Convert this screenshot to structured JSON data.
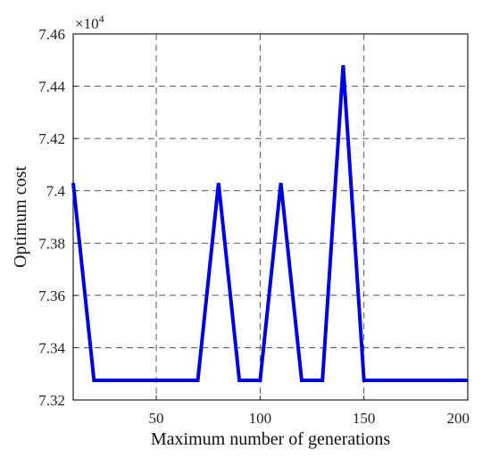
{
  "chart_data": {
    "type": "line",
    "title": "",
    "xlabel": "Maximum number of generations",
    "ylabel": "Optimum cost",
    "y_multiplier": "×10",
    "y_multiplier_exponent": "4",
    "xlim": [
      10,
      200
    ],
    "ylim": [
      7.32,
      7.46
    ],
    "xticks": [
      50,
      100,
      150,
      200
    ],
    "xtick_labels": [
      "50",
      "100",
      "150",
      "200"
    ],
    "yticks": [
      7.32,
      7.34,
      7.36,
      7.38,
      7.4,
      7.42,
      7.44,
      7.46
    ],
    "ytick_labels": [
      "7.32",
      "7.34",
      "7.36",
      "7.38",
      "7.4",
      "7.42",
      "7.44",
      "7.46"
    ],
    "grid": true,
    "series": [
      {
        "color": "#0000e6",
        "x": [
          10,
          20,
          30,
          40,
          50,
          60,
          70,
          80,
          90,
          100,
          110,
          120,
          130,
          140,
          150,
          160,
          170,
          180,
          190,
          200
        ],
        "y": [
          7.403,
          7.3275,
          7.3275,
          7.3275,
          7.3275,
          7.3275,
          7.3275,
          7.403,
          7.3275,
          7.3275,
          7.403,
          7.3275,
          7.3275,
          7.448,
          7.3275,
          7.3275,
          7.3275,
          7.3275,
          7.3275,
          7.3275
        ]
      }
    ]
  }
}
